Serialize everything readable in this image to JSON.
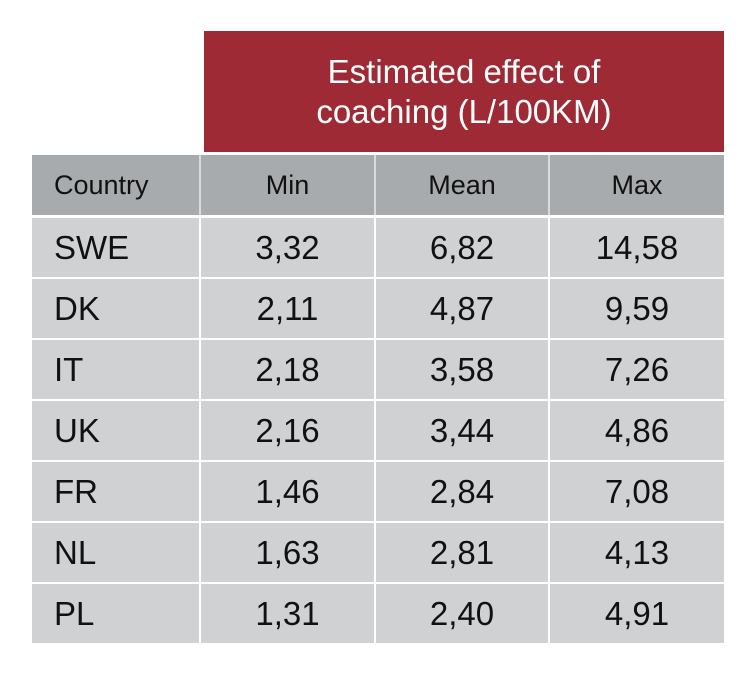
{
  "banner": {
    "title": "Estimated effect of\ncoaching (L/100KM)"
  },
  "table": {
    "headers": {
      "country": "Country",
      "min": "Min",
      "mean": "Mean",
      "max": "Max"
    },
    "rows": [
      {
        "country": "SWE",
        "min": "3,32",
        "mean": "6,82",
        "max": "14,58"
      },
      {
        "country": "DK",
        "min": "2,11",
        "mean": "4,87",
        "max": "9,59"
      },
      {
        "country": "IT",
        "min": "2,18",
        "mean": "3,58",
        "max": "7,26"
      },
      {
        "country": "UK",
        "min": "2,16",
        "mean": "3,44",
        "max": "4,86"
      },
      {
        "country": "FR",
        "min": "1,46",
        "mean": "2,84",
        "max": "7,08"
      },
      {
        "country": "NL",
        "min": "1,63",
        "mean": "2,81",
        "max": "4,13"
      },
      {
        "country": "PL",
        "min": "1,31",
        "mean": "2,40",
        "max": "4,91"
      }
    ]
  },
  "colors": {
    "banner": "#9d2a35",
    "header_row": "#a7abad",
    "body_rows": "#d0d1d3"
  },
  "chart_data": {
    "type": "table",
    "title": "Estimated effect of coaching (L/100KM)",
    "columns": [
      "Country",
      "Min",
      "Mean",
      "Max"
    ],
    "categories": [
      "SWE",
      "DK",
      "IT",
      "UK",
      "FR",
      "NL",
      "PL"
    ],
    "series": [
      {
        "name": "Min",
        "values": [
          3.32,
          2.11,
          2.18,
          2.16,
          1.46,
          1.63,
          1.31
        ]
      },
      {
        "name": "Mean",
        "values": [
          6.82,
          4.87,
          3.58,
          3.44,
          2.84,
          2.81,
          2.4
        ]
      },
      {
        "name": "Max",
        "values": [
          14.58,
          9.59,
          7.26,
          4.86,
          7.08,
          4.13,
          4.91
        ]
      }
    ]
  }
}
